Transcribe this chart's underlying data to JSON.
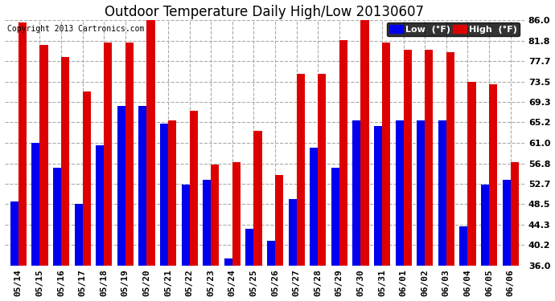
{
  "title": "Outdoor Temperature Daily High/Low 20130607",
  "copyright": "Copyright 2013 Cartronics.com",
  "legend_low": "Low  (°F)",
  "legend_high": "High  (°F)",
  "categories": [
    "05/14",
    "05/15",
    "05/16",
    "05/17",
    "05/18",
    "05/19",
    "05/20",
    "05/21",
    "05/22",
    "05/23",
    "05/24",
    "05/25",
    "05/26",
    "05/27",
    "05/28",
    "05/29",
    "05/30",
    "05/31",
    "06/01",
    "06/02",
    "06/03",
    "06/04",
    "06/05",
    "06/06"
  ],
  "highs": [
    85.5,
    81.0,
    78.5,
    71.5,
    81.5,
    81.5,
    86.0,
    65.5,
    67.5,
    56.5,
    57.0,
    63.5,
    54.5,
    75.0,
    75.0,
    82.0,
    86.0,
    81.5,
    80.0,
    80.0,
    79.5,
    73.5,
    73.0,
    57.0
  ],
  "lows": [
    49.0,
    61.0,
    56.0,
    48.5,
    60.5,
    68.5,
    68.5,
    65.0,
    52.5,
    53.5,
    37.5,
    43.5,
    41.0,
    49.5,
    60.0,
    56.0,
    65.5,
    64.5,
    65.5,
    65.5,
    65.5,
    44.0,
    52.5,
    53.5
  ],
  "ylim": [
    36.0,
    86.0
  ],
  "yticks": [
    36.0,
    40.2,
    44.3,
    48.5,
    52.7,
    56.8,
    61.0,
    65.2,
    69.3,
    73.5,
    77.7,
    81.8,
    86.0
  ],
  "bar_width": 0.38,
  "low_color": "#0000ee",
  "high_color": "#dd0000",
  "bg_color": "#ffffff",
  "grid_color": "#aaaaaa",
  "title_fontsize": 12,
  "copyright_fontsize": 7,
  "tick_fontsize": 8,
  "legend_fontsize": 8
}
